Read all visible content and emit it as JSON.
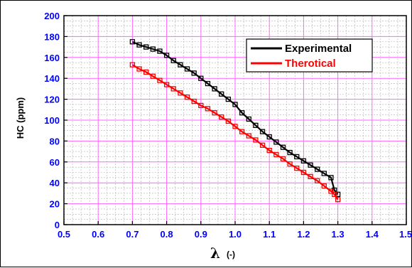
{
  "chart_data": {
    "type": "line",
    "xlabel": "λ",
    "xlabel_unit": "(-)",
    "ylabel": "HC (ppm)",
    "xlim": [
      0.5,
      1.5
    ],
    "ylim": [
      0,
      200
    ],
    "x_ticks": [
      "0.5",
      "0.6",
      "0.7",
      "0.8",
      "0.9",
      "1.0",
      "1.1",
      "1.2",
      "1.3",
      "1.4",
      "1.5"
    ],
    "y_ticks": [
      "0",
      "20",
      "40",
      "60",
      "80",
      "100",
      "120",
      "140",
      "160",
      "180",
      "200"
    ],
    "grid": true,
    "legend_position": "top-right",
    "series": [
      {
        "name": "Experimental",
        "color": "#000000",
        "x": [
          0.7,
          0.72,
          0.74,
          0.76,
          0.78,
          0.8,
          0.82,
          0.84,
          0.86,
          0.88,
          0.9,
          0.92,
          0.94,
          0.96,
          0.98,
          1.0,
          1.02,
          1.04,
          1.06,
          1.08,
          1.1,
          1.12,
          1.14,
          1.16,
          1.18,
          1.2,
          1.22,
          1.24,
          1.26,
          1.28,
          1.29,
          1.3
        ],
        "y": [
          175,
          172,
          170,
          168,
          166,
          162,
          157,
          153,
          149,
          145,
          140,
          135,
          130,
          125,
          120,
          115,
          107,
          101,
          95,
          89,
          84,
          79,
          74,
          69,
          65,
          61,
          57,
          53,
          49,
          45,
          33,
          29
        ]
      },
      {
        "name": "Therotical",
        "color": "#ff0000",
        "x": [
          0.7,
          0.72,
          0.74,
          0.76,
          0.78,
          0.8,
          0.82,
          0.84,
          0.86,
          0.88,
          0.9,
          0.92,
          0.94,
          0.96,
          0.98,
          1.0,
          1.02,
          1.04,
          1.06,
          1.08,
          1.1,
          1.12,
          1.14,
          1.16,
          1.18,
          1.2,
          1.22,
          1.24,
          1.26,
          1.28,
          1.29,
          1.3
        ],
        "y": [
          153,
          149,
          146,
          142,
          138,
          134,
          130,
          126,
          122,
          118,
          114,
          111,
          107,
          103,
          99,
          94,
          89,
          85,
          81,
          76,
          71,
          67,
          63,
          58,
          54,
          50,
          46,
          42,
          37,
          32,
          29,
          24
        ]
      }
    ],
    "colors": {
      "grid": "#ff66ff",
      "minor_grid": "#b0b0b0",
      "tick_labels": "#0000ff",
      "axis": "#000000"
    }
  }
}
